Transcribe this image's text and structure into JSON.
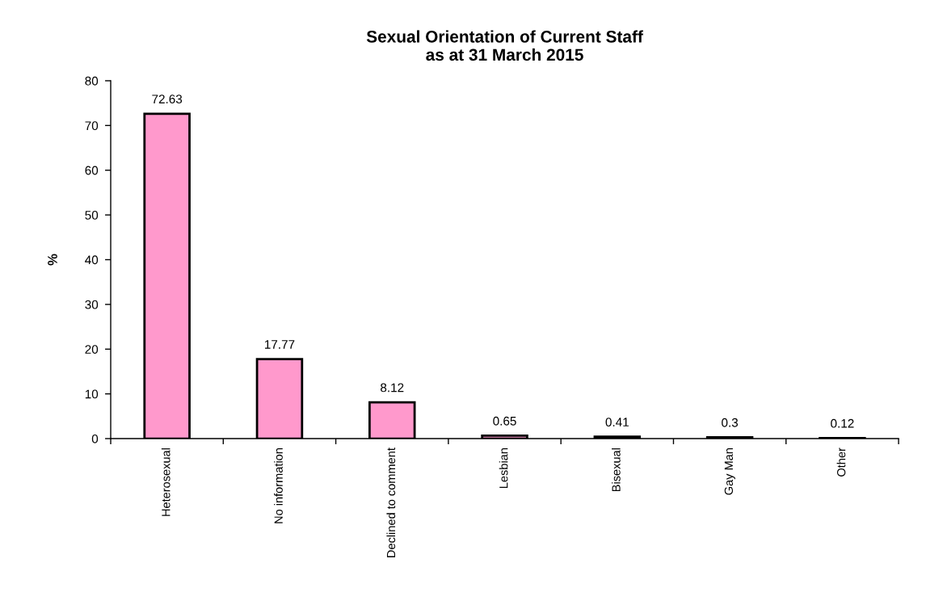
{
  "chart_data": {
    "type": "bar",
    "title": "Sexual Orientation of Current Staff\nas at 31 March 2015",
    "ylabel": "%",
    "categories": [
      "Heterosexual",
      "No information",
      "Declined to comment",
      "Lesbian",
      "Bisexual",
      "Gay Man",
      "Other"
    ],
    "values": [
      72.63,
      17.77,
      8.12,
      0.65,
      0.41,
      0.3,
      0.12
    ],
    "color": "#ff99cc",
    "ylim": [
      0,
      80
    ],
    "yticks": [
      0,
      10,
      20,
      30,
      40,
      50,
      60,
      70,
      80
    ],
    "data_labels": true,
    "grid": false,
    "legend": false
  }
}
